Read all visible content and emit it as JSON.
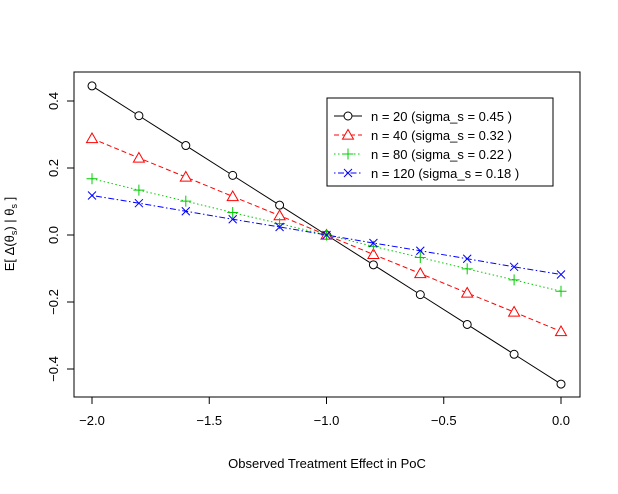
{
  "chart_data": {
    "type": "line",
    "title": "",
    "xlabel": "Observed Treatment Effect in PoC",
    "ylabel": "E[ Δ(θ_s) | θ_s ]",
    "xlim": [
      -2.0,
      0.0
    ],
    "ylim": [
      -0.46,
      0.46
    ],
    "x_ticks": [
      -2.0,
      -1.5,
      -1.0,
      -0.5,
      0.0
    ],
    "x_tick_labels": [
      "−2.0",
      "−1.5",
      "−1.0",
      "−0.5",
      "0.0"
    ],
    "y_ticks": [
      -0.4,
      -0.2,
      0.0,
      0.2,
      0.4
    ],
    "y_tick_labels": [
      "−0.4",
      "−0.2",
      "0.0",
      "0.2",
      "0.4"
    ],
    "grid": false,
    "legend_position": "top-right",
    "x": [
      -2.0,
      -1.8,
      -1.6,
      -1.4,
      -1.2,
      -1.0,
      -0.8,
      -0.6,
      -0.4,
      -0.2,
      0.0
    ],
    "series": [
      {
        "name": "n = 20 (sigma_s = 0.45 )",
        "color": "#000000",
        "marker": "circle",
        "dash": "solid",
        "values": [
          0.445,
          0.356,
          0.267,
          0.178,
          0.089,
          0.0,
          -0.089,
          -0.178,
          -0.267,
          -0.356,
          -0.445
        ]
      },
      {
        "name": "n = 40 (sigma_s = 0.32 )",
        "color": "#ff0000",
        "marker": "triangle",
        "dash": "dashed",
        "values": [
          0.288,
          0.23,
          0.173,
          0.115,
          0.058,
          0.0,
          -0.058,
          -0.115,
          -0.173,
          -0.23,
          -0.288
        ]
      },
      {
        "name": "n = 80 (sigma_s = 0.22 )",
        "color": "#00cc00",
        "marker": "plus",
        "dash": "dotted",
        "values": [
          0.168,
          0.134,
          0.101,
          0.067,
          0.034,
          0.0,
          -0.034,
          -0.067,
          -0.101,
          -0.134,
          -0.168
        ]
      },
      {
        "name": "n = 120 (sigma_s = 0.18 )",
        "color": "#0000ff",
        "marker": "cross",
        "dash": "dotdash",
        "values": [
          0.118,
          0.095,
          0.071,
          0.047,
          0.024,
          0.0,
          -0.024,
          -0.047,
          -0.071,
          -0.095,
          -0.118
        ]
      }
    ]
  }
}
